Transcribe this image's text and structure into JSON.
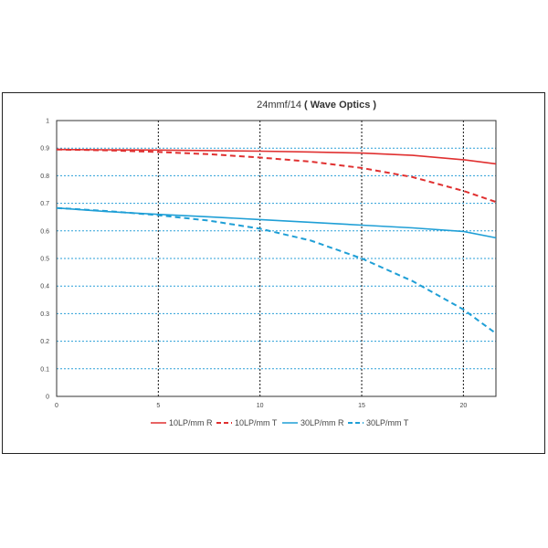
{
  "chart_data": {
    "type": "line",
    "title": "24mmf/14",
    "subtitle": "( Wave Optics )",
    "xlabel": "",
    "ylabel": "",
    "xlim": [
      0,
      21.6
    ],
    "ylim": [
      0,
      1
    ],
    "xticks": [
      0,
      5,
      10,
      15,
      20
    ],
    "yticks": [
      0,
      0.1,
      0.2,
      0.3,
      0.4,
      0.5,
      0.6,
      0.7,
      0.8,
      0.9,
      1
    ],
    "ytick_labels": [
      "0",
      "0.1",
      "0.2",
      "0.3",
      "0.4",
      "0.5",
      "0.6",
      "0.7",
      "0.8",
      "0.9",
      "1"
    ],
    "xtick_labels": [
      "0",
      "5",
      "10",
      "15",
      "20"
    ],
    "grid": "dashed blue horizontal lines, dashed black vertical lines",
    "legend_position": "bottom",
    "series": [
      {
        "name": "10LP/mm R",
        "color": "#e03030",
        "dash": false,
        "x": [
          0,
          2.5,
          5,
          7.5,
          10,
          12.5,
          15,
          17.5,
          20,
          21.6
        ],
        "y": [
          0.895,
          0.894,
          0.893,
          0.891,
          0.889,
          0.886,
          0.882,
          0.874,
          0.858,
          0.843
        ]
      },
      {
        "name": "10LP/mm T",
        "color": "#e03030",
        "dash": true,
        "x": [
          0,
          2.5,
          5,
          7.5,
          10,
          12.5,
          15,
          17.5,
          20,
          21.6
        ],
        "y": [
          0.895,
          0.892,
          0.886,
          0.878,
          0.866,
          0.851,
          0.828,
          0.795,
          0.745,
          0.705
        ]
      },
      {
        "name": "30LP/mm R",
        "color": "#1f9fd6",
        "dash": false,
        "x": [
          0,
          2.5,
          5,
          7.5,
          10,
          12.5,
          15,
          17.5,
          20,
          21.6
        ],
        "y": [
          0.683,
          0.67,
          0.66,
          0.651,
          0.641,
          0.631,
          0.621,
          0.611,
          0.598,
          0.575
        ]
      },
      {
        "name": "30LP/mm T",
        "color": "#1f9fd6",
        "dash": true,
        "x": [
          0,
          2.5,
          5,
          7.5,
          10,
          12.5,
          15,
          17.5,
          20,
          21.6
        ],
        "y": [
          0.683,
          0.672,
          0.657,
          0.637,
          0.608,
          0.565,
          0.5,
          0.418,
          0.315,
          0.228
        ]
      }
    ]
  }
}
